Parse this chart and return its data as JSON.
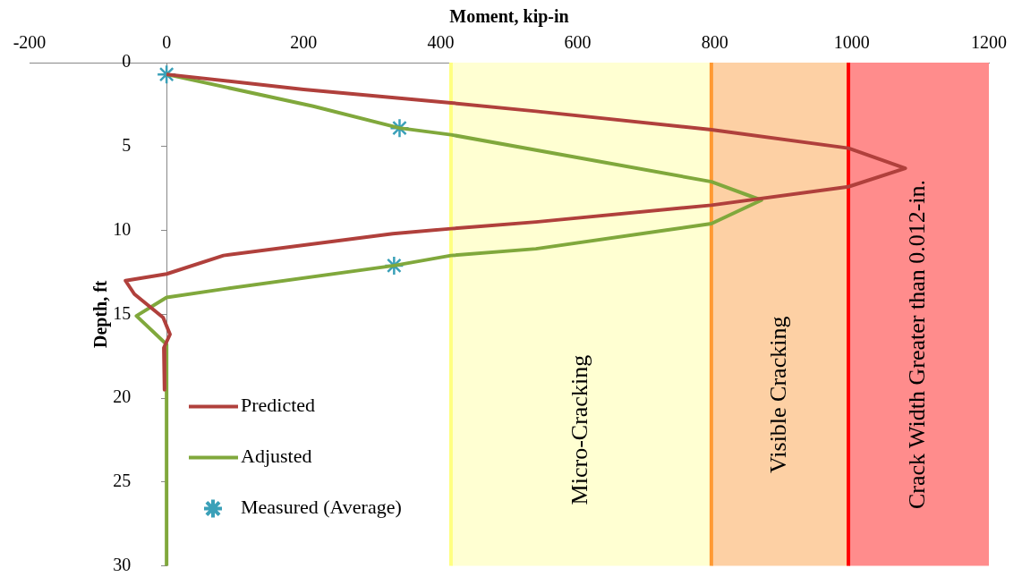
{
  "chart_data": {
    "type": "line",
    "xlabel": "Moment, kip-in",
    "ylabel": "Depth, ft",
    "xlim": [
      -200,
      1200
    ],
    "xticks": [
      -200,
      0,
      200,
      400,
      600,
      800,
      1000,
      1200
    ],
    "ylim": [
      30,
      0
    ],
    "yticks": [
      0,
      5,
      10,
      15,
      20,
      25,
      30
    ],
    "grid": false,
    "legend": "bottom left",
    "series": [
      {
        "name": "Predicted",
        "marker": "none",
        "color": "#b0403c",
        "x": [
          0,
          200,
          415,
          539,
          795,
          995,
          1078,
          995,
          795,
          539,
          415,
          330,
          83,
          0,
          -60,
          -47,
          -5,
          5,
          -4,
          -3
        ],
        "values": [
          0.7,
          1.6,
          2.4,
          2.9,
          4.0,
          5.1,
          6.3,
          7.4,
          8.5,
          9.5,
          9.9,
          10.2,
          11.5,
          12.6,
          13.0,
          13.8,
          15.2,
          16.2,
          17.0,
          19.5
        ]
      },
      {
        "name": "Adjusted",
        "marker": "none",
        "color": "#80a83c",
        "x": [
          0,
          214,
          340,
          415,
          795,
          868,
          795,
          539,
          415,
          332,
          83,
          0,
          -44,
          0,
          0
        ],
        "values": [
          0.7,
          2.6,
          3.9,
          4.3,
          7.1,
          8.2,
          9.6,
          11.1,
          11.5,
          12.1,
          13.5,
          14.0,
          15.1,
          16.8,
          30
        ]
      },
      {
        "name": "Measured (Average)",
        "type": "scatter",
        "marker": "cross",
        "color": "#3aa0b8",
        "x": [
          0,
          340,
          332
        ],
        "values": [
          0.7,
          3.9,
          12.1
        ]
      }
    ],
    "bands": [
      {
        "axis": "x",
        "from": 415,
        "to": 795,
        "label": "Micro-Cracking",
        "color": "#ffffd2"
      },
      {
        "axis": "x",
        "from": 795,
        "to": 995,
        "label": "Visible Cracking",
        "color": "#fdd0a4"
      },
      {
        "axis": "x",
        "from": 995,
        "to": 1200,
        "label": "Crack Width Greater than 0.012-in.",
        "color": "#ff8c8c"
      }
    ],
    "ref_lines": [
      {
        "axis": "x",
        "value": 415,
        "color": "#ffff80"
      },
      {
        "axis": "x",
        "value": 795,
        "color": "#ff9933"
      },
      {
        "axis": "x",
        "value": 995,
        "color": "#ff0000"
      }
    ]
  }
}
